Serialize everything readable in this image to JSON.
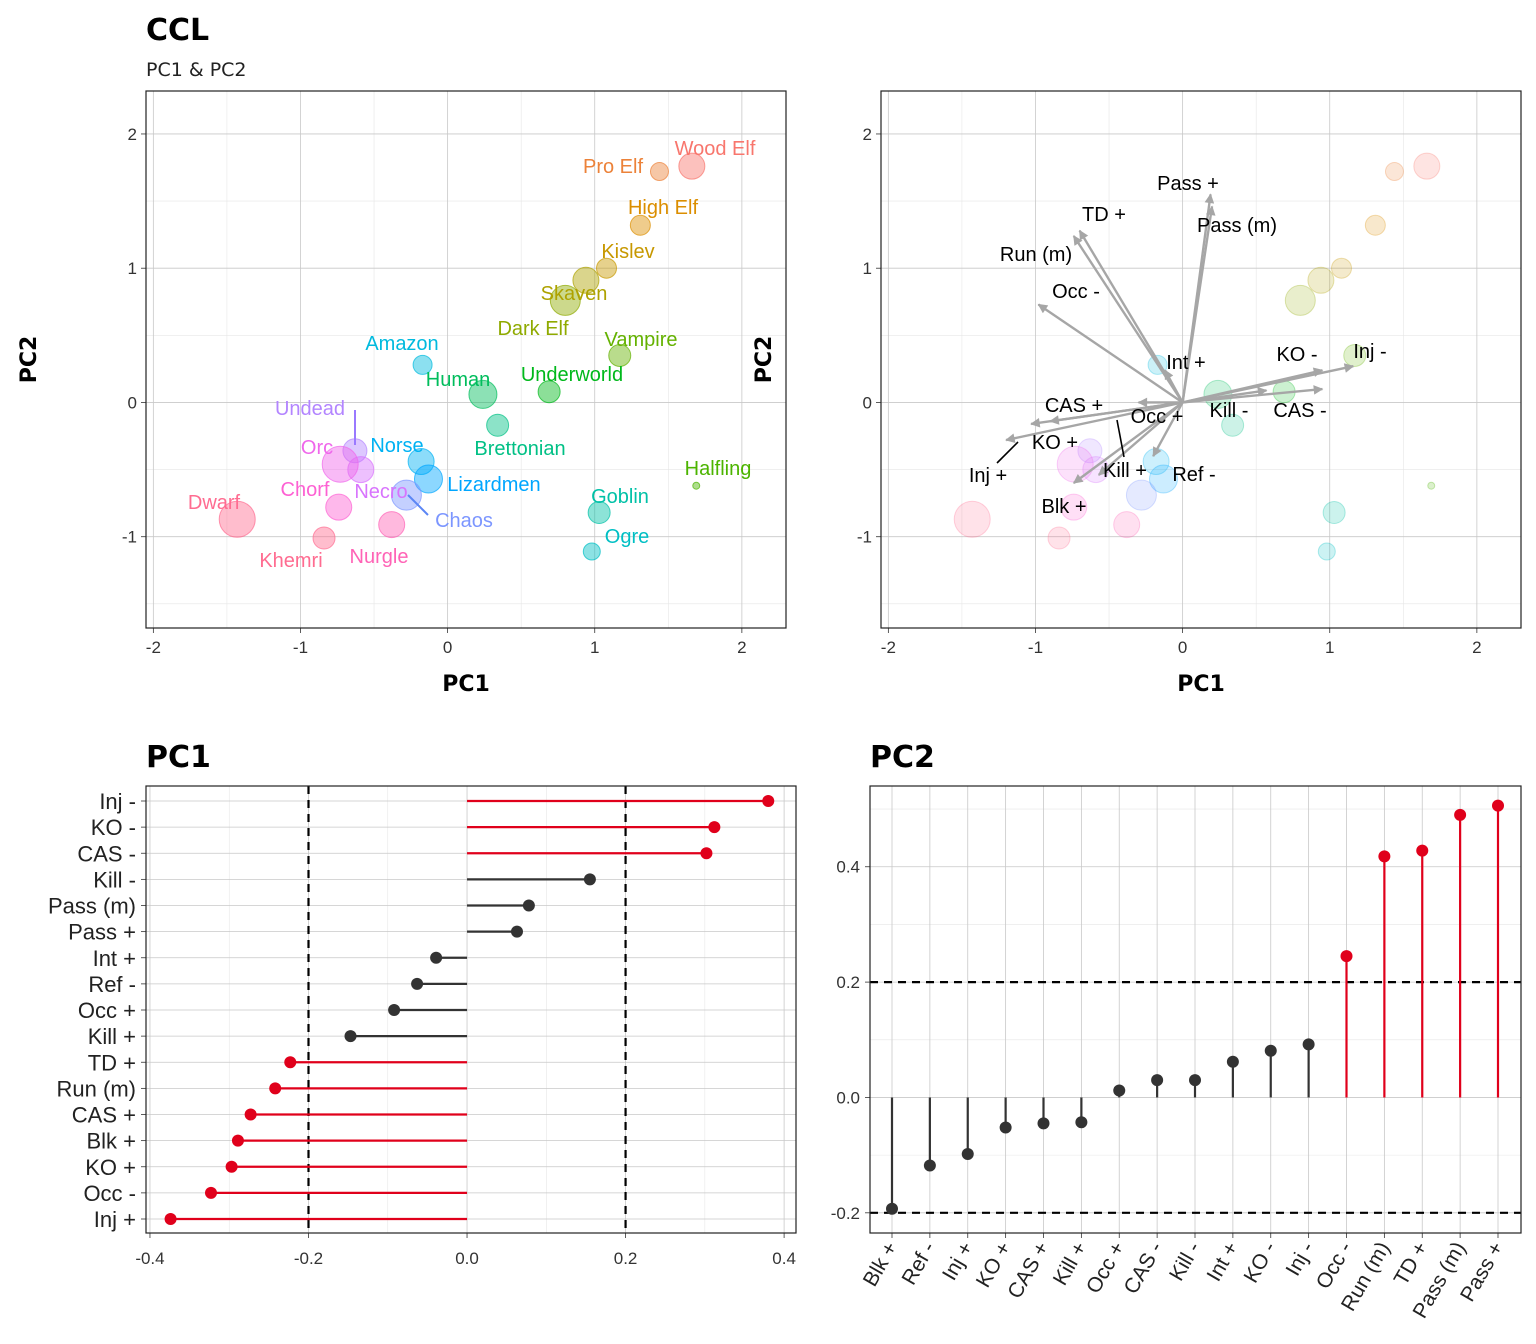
{
  "figure": {
    "title": "CCL",
    "subtitle": "PC1 & PC2"
  },
  "chart_data": [
    {
      "type": "scatter",
      "xlabel": "PC1",
      "ylabel": "PC2",
      "xlim": [
        -2.05,
        2.3
      ],
      "ylim": [
        -1.68,
        2.32
      ],
      "xticks": [
        "-2",
        "-1",
        "0",
        "1",
        "2"
      ],
      "yticks": [
        "-1",
        "0",
        "1",
        "2"
      ],
      "grid": true,
      "points": [
        {
          "name": "Wood Elf",
          "x": 1.66,
          "y": 1.76,
          "color": "#F8766D"
        },
        {
          "name": "Pro Elf",
          "x": 1.44,
          "y": 1.72,
          "color": "#EC8239"
        },
        {
          "name": "High Elf",
          "x": 1.31,
          "y": 1.32,
          "color": "#DB8E00"
        },
        {
          "name": "Kislev",
          "x": 1.08,
          "y": 1.0,
          "color": "#C79800"
        },
        {
          "name": "Skaven",
          "x": 0.94,
          "y": 0.91,
          "color": "#AEA200"
        },
        {
          "name": "Dark Elf",
          "x": 0.8,
          "y": 0.76,
          "color": "#8FAA00"
        },
        {
          "name": "Vampire",
          "x": 1.17,
          "y": 0.35,
          "color": "#64B200"
        },
        {
          "name": "Underworld",
          "x": 0.69,
          "y": 0.08,
          "color": "#00B81B"
        },
        {
          "name": "Human",
          "x": 0.24,
          "y": 0.06,
          "color": "#00BD5C"
        },
        {
          "name": "Brettonian",
          "x": 0.34,
          "y": -0.17,
          "color": "#00C085"
        },
        {
          "name": "Goblin",
          "x": 1.03,
          "y": -0.82,
          "color": "#00C1A7"
        },
        {
          "name": "Ogre",
          "x": 0.98,
          "y": -1.11,
          "color": "#00BFC4"
        },
        {
          "name": "Amazon",
          "x": -0.17,
          "y": 0.28,
          "color": "#00BADE"
        },
        {
          "name": "Norse",
          "x": -0.18,
          "y": -0.44,
          "color": "#00B2F3"
        },
        {
          "name": "Lizardmen",
          "x": -0.13,
          "y": -0.57,
          "color": "#00A6FF"
        },
        {
          "name": "Chaos",
          "x": -0.28,
          "y": -0.69,
          "color": "#7C96FF"
        },
        {
          "name": "Undead",
          "x": -0.63,
          "y": -0.36,
          "color": "#B385FF"
        },
        {
          "name": "Necro",
          "x": -0.59,
          "y": -0.5,
          "color": "#D874FD"
        },
        {
          "name": "Orc",
          "x": -0.73,
          "y": -0.46,
          "color": "#EF67EB"
        },
        {
          "name": "Chorf",
          "x": -0.74,
          "y": -0.78,
          "color": "#FD61D3"
        },
        {
          "name": "Nurgle",
          "x": -0.38,
          "y": -0.91,
          "color": "#FF63B6"
        },
        {
          "name": "Khemri",
          "x": -0.84,
          "y": -1.01,
          "color": "#FF6C91"
        },
        {
          "name": "Dwarf",
          "x": -1.43,
          "y": -0.87,
          "color": "#FF6C91"
        },
        {
          "name": "Halfling",
          "x": 1.69,
          "y": -0.62,
          "color": "#4CB400"
        }
      ]
    },
    {
      "type": "scatter",
      "xlabel": "PC1",
      "ylabel": "PC2",
      "xlim": [
        -2.05,
        2.3
      ],
      "ylim": [
        -1.68,
        2.32
      ],
      "xticks": [
        "-2",
        "-1",
        "0",
        "1",
        "2"
      ],
      "yticks": [
        "-1",
        "0",
        "1",
        "2"
      ],
      "grid": true,
      "vectors": [
        {
          "name": "Pass +",
          "x": 0.19,
          "y": 1.55
        },
        {
          "name": "TD +",
          "x": -0.7,
          "y": 1.28
        },
        {
          "name": "Pass (m)",
          "x": 0.2,
          "y": 1.46
        },
        {
          "name": "Run (m)",
          "x": -0.74,
          "y": 1.24
        },
        {
          "name": "Occ -",
          "x": -0.98,
          "y": 0.73
        },
        {
          "name": "Int +",
          "x": -0.12,
          "y": 0.24
        },
        {
          "name": "KO -",
          "x": 0.95,
          "y": 0.24
        },
        {
          "name": "Inj -",
          "x": 1.16,
          "y": 0.27
        },
        {
          "name": "CAS +",
          "x": -0.9,
          "y": -0.14
        },
        {
          "name": "Occ +",
          "x": -0.3,
          "y": 0.0
        },
        {
          "name": "Kill -",
          "x": 0.57,
          "y": 0.09
        },
        {
          "name": "CAS -",
          "x": 0.95,
          "y": 0.1
        },
        {
          "name": "KO +",
          "x": -1.03,
          "y": -0.16
        },
        {
          "name": "Inj +",
          "x": -1.2,
          "y": -0.28
        },
        {
          "name": "Kill +",
          "x": -0.57,
          "y": -0.54
        },
        {
          "name": "Ref -",
          "x": -0.2,
          "y": -0.4
        },
        {
          "name": "Blk +",
          "x": -0.74,
          "y": -0.6
        }
      ]
    },
    {
      "type": "lollipop",
      "title": "PC1",
      "orientation": "horizontal",
      "xlim": [
        -0.405,
        0.415
      ],
      "xticks": [
        "-0.4",
        "-0.2",
        "0.0",
        "0.2",
        "0.4"
      ],
      "reference_lines": [
        -0.2,
        0.2
      ],
      "categories": [
        "Inj -",
        "KO -",
        "CAS -",
        "Kill -",
        "Pass (m)",
        "Pass +",
        "Int +",
        "Ref -",
        "Occ +",
        "Kill +",
        "TD +",
        "Run (m)",
        "CAS +",
        "Blk +",
        "KO +",
        "Occ -",
        "Inj +"
      ],
      "values": [
        0.38,
        0.312,
        0.302,
        0.155,
        0.078,
        0.063,
        -0.039,
        -0.063,
        -0.092,
        -0.147,
        -0.223,
        -0.242,
        -0.273,
        -0.289,
        -0.297,
        -0.323,
        -0.374
      ],
      "highlight_color": "#E0001B",
      "base_color": "#333333"
    },
    {
      "type": "lollipop",
      "title": "PC2",
      "orientation": "vertical",
      "ylim": [
        -0.235,
        0.54
      ],
      "yticks": [
        "-0.2",
        "0.0",
        "0.2",
        "0.4"
      ],
      "reference_lines": [
        -0.2,
        0.2
      ],
      "categories": [
        "Blk +",
        "Ref -",
        "Inj +",
        "KO +",
        "CAS +",
        "Kill +",
        "Occ +",
        "CAS -",
        "Kill -",
        "Int +",
        "KO -",
        "Inj -",
        "Occ -",
        "Run (m)",
        "TD +",
        "Pass (m)",
        "Pass +"
      ],
      "values": [
        -0.193,
        -0.118,
        -0.098,
        -0.052,
        -0.045,
        -0.043,
        0.012,
        0.03,
        0.03,
        0.062,
        0.081,
        0.092,
        0.245,
        0.418,
        0.428,
        0.49,
        0.506
      ],
      "highlight_color": "#E0001B",
      "base_color": "#333333"
    }
  ]
}
